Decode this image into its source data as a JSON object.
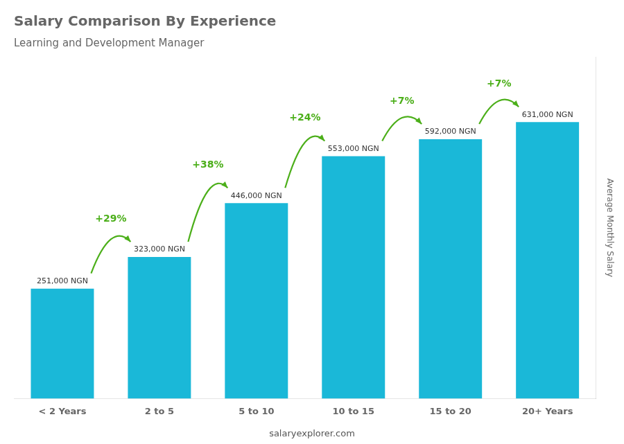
{
  "chart_data": {
    "type": "bar",
    "title": "Salary Comparison By Experience",
    "subtitle": "Learning and Development Manager",
    "ylabel": "Average Monthly Salary",
    "categories": [
      "< 2 Years",
      "2 to 5",
      "5 to 10",
      "10 to 15",
      "15 to 20",
      "20+ Years"
    ],
    "values": [
      251000,
      323000,
      446000,
      553000,
      592000,
      631000
    ],
    "value_labels": [
      "251,000 NGN",
      "323,000 NGN",
      "446,000 NGN",
      "553,000 NGN",
      "592,000 NGN",
      "631,000 NGN"
    ],
    "data_labels": true,
    "color": "#1ab8d8",
    "ylim": [
      0,
      780000
    ],
    "grid": false,
    "tick_labels": "x",
    "annotations": [
      "+29%",
      "+38%",
      "+24%",
      "+7%",
      "+7%",
      "salaryexplorer.com"
    ]
  }
}
